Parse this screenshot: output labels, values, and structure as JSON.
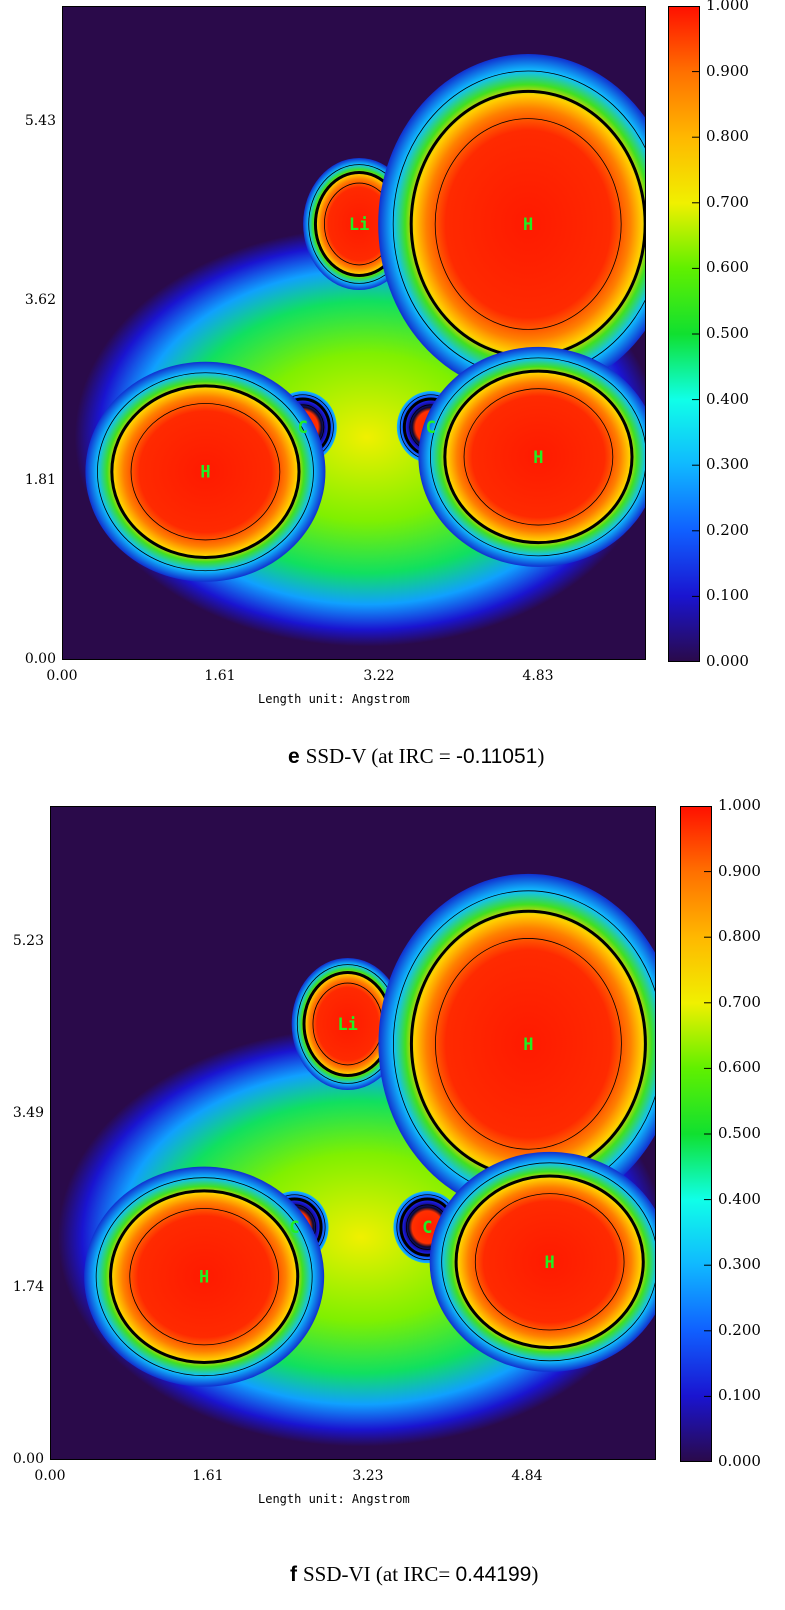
{
  "chart_data": [
    {
      "type": "heatmap",
      "caption": {
        "letter": "e",
        "label": "SSD-V (at IRC = ",
        "irc": "-0.11051",
        "close": ")"
      },
      "xlabel": "Length unit: Angstrom",
      "x_ticks": [
        "0.00",
        "1.61",
        "3.22",
        "4.83"
      ],
      "y_ticks": [
        "0.00",
        "1.81",
        "3.62",
        "5.43"
      ],
      "xlim": [
        0,
        5.7
      ],
      "ylim": [
        0,
        6.6
      ],
      "colorbar": {
        "ticks": [
          "0.000",
          "0.100",
          "0.200",
          "0.300",
          "0.400",
          "0.500",
          "0.600",
          "0.700",
          "0.800",
          "0.900",
          "1.000"
        ],
        "range": [
          0,
          1
        ]
      },
      "atoms": [
        {
          "label": "Li",
          "x": 2.9,
          "y": 4.4
        },
        {
          "label": "H",
          "x": 4.55,
          "y": 4.4
        },
        {
          "label": "C",
          "x": 2.35,
          "y": 2.35
        },
        {
          "label": "C",
          "x": 3.6,
          "y": 2.35
        },
        {
          "label": "H",
          "x": 1.4,
          "y": 1.9
        },
        {
          "label": "H",
          "x": 4.65,
          "y": 2.05
        }
      ]
    },
    {
      "type": "heatmap",
      "caption": {
        "letter": "f",
        "label": "SSD-VI (at IRC= ",
        "irc": "0.44199",
        "close": ")"
      },
      "xlabel": "Length unit: Angstrom",
      "x_ticks": [
        "0.00",
        "1.61",
        "3.23",
        "4.84"
      ],
      "y_ticks": [
        "0.00",
        "1.74",
        "3.49",
        "5.23"
      ],
      "xlim": [
        0,
        5.7
      ],
      "ylim": [
        0,
        6.6
      ],
      "colorbar": {
        "ticks": [
          "0.000",
          "0.100",
          "0.200",
          "0.300",
          "0.400",
          "0.500",
          "0.600",
          "0.700",
          "0.800",
          "0.900",
          "1.000"
        ],
        "range": [
          0,
          1
        ]
      },
      "atoms": [
        {
          "label": "Li",
          "x": 2.8,
          "y": 4.4
        },
        {
          "label": "H",
          "x": 4.5,
          "y": 4.2
        },
        {
          "label": "C",
          "x": 2.3,
          "y": 2.35
        },
        {
          "label": "C",
          "x": 3.55,
          "y": 2.35
        },
        {
          "label": "H",
          "x": 1.45,
          "y": 1.85
        },
        {
          "label": "H",
          "x": 4.7,
          "y": 2.0
        }
      ]
    }
  ]
}
